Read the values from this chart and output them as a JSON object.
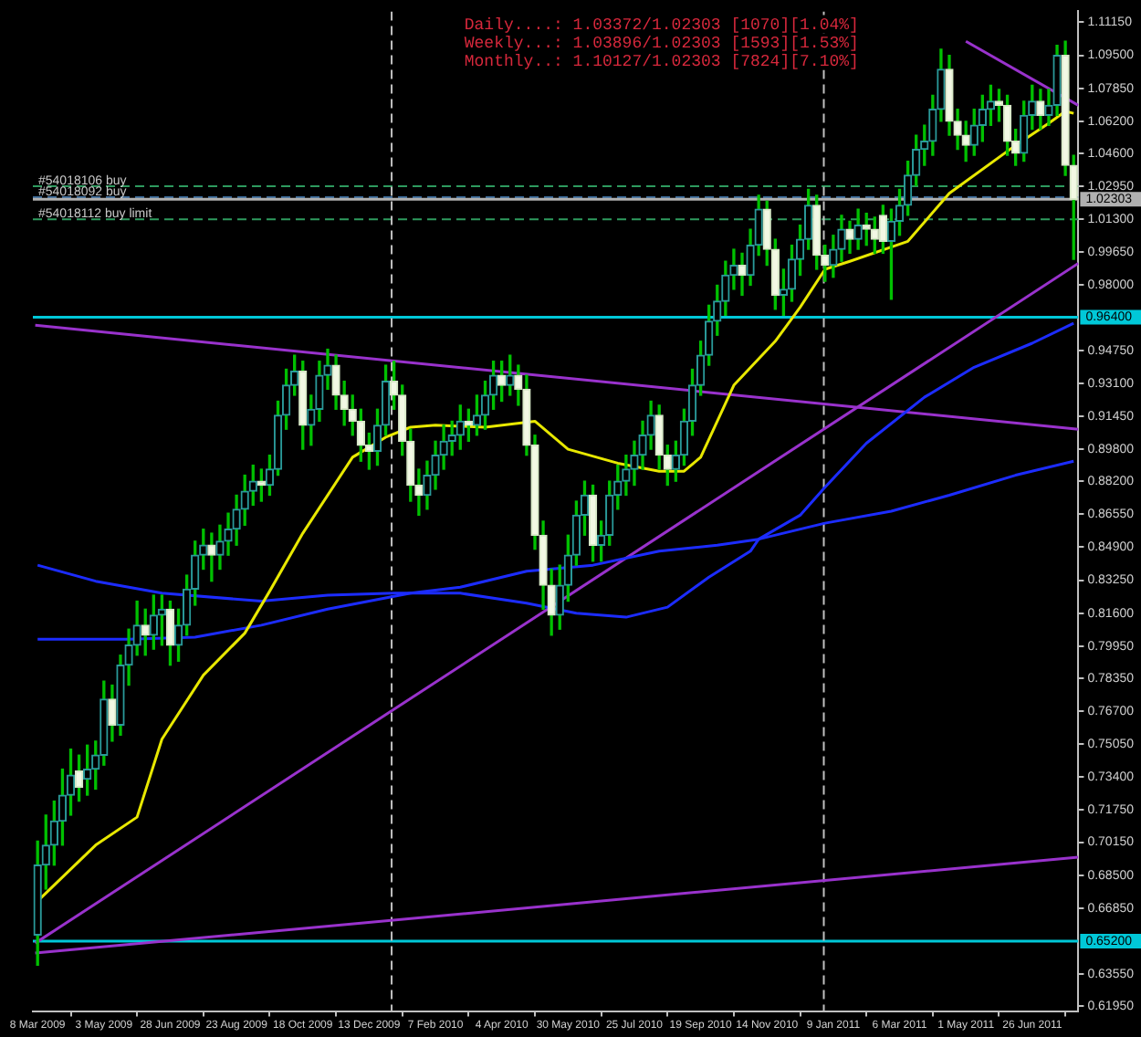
{
  "chart_data": {
    "type": "candlestick",
    "x": [
      "2009-03-08",
      "2009-03-15",
      "2009-03-22",
      "2009-03-29",
      "2009-04-05",
      "2009-04-12",
      "2009-04-19",
      "2009-04-26",
      "2009-05-03",
      "2009-05-10",
      "2009-05-17",
      "2009-05-24",
      "2009-05-31",
      "2009-06-07",
      "2009-06-14",
      "2009-06-21",
      "2009-06-28",
      "2009-07-05",
      "2009-07-12",
      "2009-07-19",
      "2009-07-26",
      "2009-08-02",
      "2009-08-09",
      "2009-08-16",
      "2009-08-23",
      "2009-08-30",
      "2009-09-06",
      "2009-09-13",
      "2009-09-20",
      "2009-09-27",
      "2009-10-04",
      "2009-10-11",
      "2009-10-18",
      "2009-10-25",
      "2009-11-01",
      "2009-11-08",
      "2009-11-15",
      "2009-11-22",
      "2009-11-29",
      "2009-12-06",
      "2009-12-13",
      "2009-12-20",
      "2009-12-27",
      "2010-01-03",
      "2010-01-10",
      "2010-01-17",
      "2010-01-24",
      "2010-01-31",
      "2010-02-07",
      "2010-02-14",
      "2010-02-21",
      "2010-02-28",
      "2010-03-07",
      "2010-03-14",
      "2010-03-21",
      "2010-03-28",
      "2010-04-04",
      "2010-04-11",
      "2010-04-18",
      "2010-04-25",
      "2010-05-02",
      "2010-05-09",
      "2010-05-16",
      "2010-05-23",
      "2010-05-30",
      "2010-06-06",
      "2010-06-13",
      "2010-06-20",
      "2010-06-27",
      "2010-07-04",
      "2010-07-11",
      "2010-07-18",
      "2010-07-25",
      "2010-08-01",
      "2010-08-08",
      "2010-08-15",
      "2010-08-22",
      "2010-08-29",
      "2010-09-05",
      "2010-09-12",
      "2010-09-19",
      "2010-09-26",
      "2010-10-03",
      "2010-10-10",
      "2010-10-17",
      "2010-10-24",
      "2010-10-31",
      "2010-11-07",
      "2010-11-14",
      "2010-11-21",
      "2010-11-28",
      "2010-12-05",
      "2010-12-12",
      "2010-12-19",
      "2010-12-26",
      "2011-01-02",
      "2011-01-09",
      "2011-01-16",
      "2011-01-23",
      "2011-01-30",
      "2011-02-06",
      "2011-02-13",
      "2011-02-20",
      "2011-02-27",
      "2011-03-06",
      "2011-03-13",
      "2011-03-20",
      "2011-03-27",
      "2011-04-03",
      "2011-04-10",
      "2011-04-17",
      "2011-04-24",
      "2011-05-01",
      "2011-05-08",
      "2011-05-15",
      "2011-05-22",
      "2011-05-29",
      "2011-06-05",
      "2011-06-12",
      "2011-06-19",
      "2011-06-26",
      "2011-07-03",
      "2011-07-10",
      "2011-07-17",
      "2011-07-24",
      "2011-07-31"
    ],
    "ohlc": [
      [
        0.655,
        0.702,
        0.64,
        0.69
      ],
      [
        0.69,
        0.715,
        0.678,
        0.7
      ],
      [
        0.7,
        0.722,
        0.69,
        0.712
      ],
      [
        0.712,
        0.738,
        0.7,
        0.725
      ],
      [
        0.725,
        0.748,
        0.715,
        0.735
      ],
      [
        0.737,
        0.745,
        0.722,
        0.729
      ],
      [
        0.733,
        0.75,
        0.725,
        0.738
      ],
      [
        0.738,
        0.752,
        0.728,
        0.745
      ],
      [
        0.745,
        0.782,
        0.74,
        0.773
      ],
      [
        0.773,
        0.78,
        0.752,
        0.76
      ],
      [
        0.76,
        0.795,
        0.755,
        0.79
      ],
      [
        0.79,
        0.808,
        0.78,
        0.8
      ],
      [
        0.8,
        0.822,
        0.795,
        0.81
      ],
      [
        0.81,
        0.818,
        0.795,
        0.805
      ],
      [
        0.805,
        0.825,
        0.798,
        0.815
      ],
      [
        0.815,
        0.825,
        0.8,
        0.818
      ],
      [
        0.818,
        0.822,
        0.79,
        0.8
      ],
      [
        0.8,
        0.818,
        0.792,
        0.81
      ],
      [
        0.81,
        0.835,
        0.805,
        0.828
      ],
      [
        0.828,
        0.852,
        0.82,
        0.845
      ],
      [
        0.845,
        0.858,
        0.838,
        0.85
      ],
      [
        0.85,
        0.856,
        0.832,
        0.845
      ],
      [
        0.845,
        0.86,
        0.838,
        0.852
      ],
      [
        0.852,
        0.866,
        0.845,
        0.858
      ],
      [
        0.858,
        0.875,
        0.85,
        0.868
      ],
      [
        0.868,
        0.885,
        0.86,
        0.877
      ],
      [
        0.877,
        0.89,
        0.87,
        0.882
      ],
      [
        0.882,
        0.888,
        0.872,
        0.88
      ],
      [
        0.88,
        0.895,
        0.875,
        0.888
      ],
      [
        0.888,
        0.922,
        0.885,
        0.915
      ],
      [
        0.915,
        0.938,
        0.908,
        0.93
      ],
      [
        0.93,
        0.945,
        0.925,
        0.937
      ],
      [
        0.937,
        0.942,
        0.898,
        0.91
      ],
      [
        0.91,
        0.925,
        0.9,
        0.918
      ],
      [
        0.918,
        0.942,
        0.912,
        0.935
      ],
      [
        0.935,
        0.948,
        0.928,
        0.94
      ],
      [
        0.94,
        0.945,
        0.918,
        0.925
      ],
      [
        0.925,
        0.932,
        0.91,
        0.918
      ],
      [
        0.918,
        0.925,
        0.905,
        0.912
      ],
      [
        0.912,
        0.918,
        0.892,
        0.9
      ],
      [
        0.9,
        0.906,
        0.888,
        0.897
      ],
      [
        0.897,
        0.918,
        0.89,
        0.91
      ],
      [
        0.91,
        0.94,
        0.905,
        0.932
      ],
      [
        0.932,
        0.942,
        0.918,
        0.925
      ],
      [
        0.925,
        0.93,
        0.895,
        0.902
      ],
      [
        0.902,
        0.908,
        0.872,
        0.88
      ],
      [
        0.88,
        0.888,
        0.865,
        0.875
      ],
      [
        0.875,
        0.892,
        0.868,
        0.885
      ],
      [
        0.885,
        0.902,
        0.878,
        0.895
      ],
      [
        0.895,
        0.91,
        0.888,
        0.902
      ],
      [
        0.902,
        0.912,
        0.895,
        0.905
      ],
      [
        0.905,
        0.92,
        0.898,
        0.912
      ],
      [
        0.912,
        0.918,
        0.902,
        0.91
      ],
      [
        0.91,
        0.925,
        0.905,
        0.915
      ],
      [
        0.915,
        0.932,
        0.908,
        0.925
      ],
      [
        0.925,
        0.942,
        0.918,
        0.935
      ],
      [
        0.935,
        0.942,
        0.922,
        0.93
      ],
      [
        0.93,
        0.945,
        0.925,
        0.935
      ],
      [
        0.935,
        0.94,
        0.92,
        0.928
      ],
      [
        0.928,
        0.935,
        0.895,
        0.9
      ],
      [
        0.9,
        0.905,
        0.848,
        0.855
      ],
      [
        0.855,
        0.862,
        0.818,
        0.83
      ],
      [
        0.83,
        0.838,
        0.805,
        0.815
      ],
      [
        0.815,
        0.84,
        0.808,
        0.83
      ],
      [
        0.83,
        0.855,
        0.822,
        0.845
      ],
      [
        0.845,
        0.872,
        0.84,
        0.865
      ],
      [
        0.865,
        0.882,
        0.855,
        0.875
      ],
      [
        0.875,
        0.88,
        0.842,
        0.85
      ],
      [
        0.85,
        0.862,
        0.842,
        0.855
      ],
      [
        0.855,
        0.882,
        0.85,
        0.875
      ],
      [
        0.875,
        0.89,
        0.868,
        0.882
      ],
      [
        0.882,
        0.895,
        0.875,
        0.888
      ],
      [
        0.888,
        0.902,
        0.88,
        0.895
      ],
      [
        0.895,
        0.912,
        0.888,
        0.905
      ],
      [
        0.905,
        0.922,
        0.898,
        0.915
      ],
      [
        0.915,
        0.92,
        0.888,
        0.895
      ],
      [
        0.895,
        0.9,
        0.88,
        0.888
      ],
      [
        0.888,
        0.902,
        0.882,
        0.895
      ],
      [
        0.895,
        0.918,
        0.89,
        0.912
      ],
      [
        0.912,
        0.938,
        0.905,
        0.93
      ],
      [
        0.93,
        0.952,
        0.925,
        0.945
      ],
      [
        0.945,
        0.97,
        0.94,
        0.962
      ],
      [
        0.962,
        0.98,
        0.955,
        0.972
      ],
      [
        0.972,
        0.992,
        0.965,
        0.985
      ],
      [
        0.985,
        0.998,
        0.978,
        0.99
      ],
      [
        0.99,
        0.996,
        0.975,
        0.985
      ],
      [
        0.985,
        1.008,
        0.98,
        1.0
      ],
      [
        1.0,
        1.025,
        0.995,
        1.018
      ],
      [
        1.018,
        1.022,
        0.99,
        0.998
      ],
      [
        0.998,
        1.003,
        0.968,
        0.975
      ],
      [
        0.975,
        0.988,
        0.965,
        0.978
      ],
      [
        0.978,
        1.0,
        0.972,
        0.993
      ],
      [
        0.993,
        1.01,
        0.985,
        1.003
      ],
      [
        1.003,
        1.028,
        0.998,
        1.02
      ],
      [
        1.02,
        1.025,
        0.988,
        0.995
      ],
      [
        0.995,
        1.0,
        0.982,
        0.99
      ],
      [
        0.99,
        1.005,
        0.984,
        0.998
      ],
      [
        0.998,
        1.015,
        0.992,
        1.008
      ],
      [
        1.008,
        1.012,
        0.996,
        1.003
      ],
      [
        1.003,
        1.018,
        0.998,
        1.01
      ],
      [
        1.01,
        1.016,
        1.0,
        1.008
      ],
      [
        1.008,
        1.014,
        0.996,
        1.003
      ],
      [
        1.015,
        1.02,
        0.996,
        1.002
      ],
      [
        1.002,
        1.018,
        0.973,
        1.012
      ],
      [
        1.012,
        1.028,
        1.005,
        1.02
      ],
      [
        1.02,
        1.042,
        1.015,
        1.035
      ],
      [
        1.035,
        1.055,
        1.03,
        1.048
      ],
      [
        1.048,
        1.06,
        1.04,
        1.052
      ],
      [
        1.052,
        1.075,
        1.045,
        1.068
      ],
      [
        1.068,
        1.098,
        1.062,
        1.088
      ],
      [
        1.088,
        1.095,
        1.055,
        1.062
      ],
      [
        1.062,
        1.068,
        1.048,
        1.055
      ],
      [
        1.055,
        1.062,
        1.042,
        1.05
      ],
      [
        1.05,
        1.068,
        1.045,
        1.06
      ],
      [
        1.06,
        1.075,
        1.052,
        1.068
      ],
      [
        1.068,
        1.08,
        1.06,
        1.072
      ],
      [
        1.072,
        1.078,
        1.062,
        1.07
      ],
      [
        1.07,
        1.075,
        1.045,
        1.052
      ],
      [
        1.052,
        1.058,
        1.04,
        1.046
      ],
      [
        1.046,
        1.072,
        1.042,
        1.065
      ],
      [
        1.065,
        1.08,
        1.058,
        1.072
      ],
      [
        1.072,
        1.078,
        1.058,
        1.065
      ],
      [
        1.065,
        1.078,
        1.06,
        1.07
      ],
      [
        1.07,
        1.1,
        1.065,
        1.095
      ],
      [
        1.095,
        1.102,
        1.035,
        1.04
      ],
      [
        1.04,
        1.045,
        0.993,
        1.023
      ]
    ],
    "series": [
      {
        "type": "line",
        "color": "#e8e800",
        "x": [
          "2009-03-08",
          "2009-04-26",
          "2009-05-31",
          "2009-06-21",
          "2009-07-26",
          "2009-08-30",
          "2009-09-20",
          "2009-10-18",
          "2009-11-29",
          "2009-12-27",
          "2010-01-17",
          "2010-02-07",
          "2010-03-21",
          "2010-05-02",
          "2010-05-30",
          "2010-07-11",
          "2010-08-15",
          "2010-09-05",
          "2010-09-19",
          "2010-10-17",
          "2010-11-21",
          "2010-12-12",
          "2011-01-02",
          "2011-01-23",
          "2011-03-13",
          "2011-04-17",
          "2011-06-12",
          "2011-07-10",
          "2011-07-24",
          "2011-07-31"
        ],
        "values": [
          0.672,
          0.7,
          0.714,
          0.753,
          0.785,
          0.806,
          0.827,
          0.856,
          0.894,
          0.904,
          0.909,
          0.91,
          0.909,
          0.912,
          0.898,
          0.891,
          0.887,
          0.887,
          0.894,
          0.93,
          0.952,
          0.969,
          0.988,
          0.992,
          1.002,
          1.026,
          1.05,
          1.061,
          1.067,
          1.066
        ]
      },
      {
        "type": "line",
        "color": "#1c2cff",
        "x": [
          "2009-03-08",
          "2009-04-26",
          "2009-06-21",
          "2009-09-13",
          "2009-11-08",
          "2010-01-03",
          "2010-02-28",
          "2010-04-25",
          "2010-06-06",
          "2010-07-18",
          "2010-08-22",
          "2010-09-26",
          "2010-10-31",
          "2010-11-07",
          "2010-12-12",
          "2011-01-02",
          "2011-02-06",
          "2011-03-27",
          "2011-05-08",
          "2011-06-26",
          "2011-07-31"
        ],
        "values": [
          0.84,
          0.832,
          0.826,
          0.822,
          0.825,
          0.826,
          0.826,
          0.821,
          0.816,
          0.814,
          0.819,
          0.834,
          0.847,
          0.853,
          0.865,
          0.879,
          0.901,
          0.924,
          0.939,
          0.951,
          0.961
        ]
      },
      {
        "type": "line",
        "color": "#1c2cff",
        "x": [
          "2009-03-08",
          "2009-05-24",
          "2009-07-19",
          "2009-09-13",
          "2009-11-08",
          "2010-01-17",
          "2010-02-28",
          "2010-04-25",
          "2010-06-20",
          "2010-08-15",
          "2010-10-03",
          "2010-11-07",
          "2011-01-02",
          "2011-02-27",
          "2011-04-17",
          "2011-06-12",
          "2011-07-31"
        ],
        "values": [
          0.803,
          0.803,
          0.804,
          0.81,
          0.818,
          0.826,
          0.829,
          0.837,
          0.84,
          0.847,
          0.85,
          0.853,
          0.861,
          0.867,
          0.875,
          0.885,
          0.892
        ]
      },
      {
        "type": "line",
        "color": "#9932cc",
        "x": [
          "2009-03-06",
          "2011-08-04"
        ],
        "values": [
          0.96,
          0.908
        ]
      },
      {
        "type": "line",
        "color": "#9932cc",
        "x": [
          "2009-03-06",
          "2011-08-04"
        ],
        "values": [
          0.651,
          0.991
        ]
      },
      {
        "type": "line",
        "color": "#9932cc",
        "x": [
          "2009-03-06",
          "2011-08-04"
        ],
        "values": [
          0.646,
          0.694
        ]
      },
      {
        "type": "line",
        "color": "#9932cc",
        "x": [
          "2011-05-01",
          "2011-08-04"
        ],
        "values": [
          1.102,
          1.07
        ]
      }
    ],
    "xlim": [
      "2009-03-04",
      "2011-08-04"
    ],
    "xticks": [
      {
        "value": "2009-03-08",
        "label": "8 Mar 2009"
      },
      {
        "value": "2009-05-03",
        "label": "3 May 2009"
      },
      {
        "value": "2009-06-28",
        "label": "28 Jun 2009"
      },
      {
        "value": "2009-08-23",
        "label": "23 Aug 2009"
      },
      {
        "value": "2009-10-18",
        "label": "18 Oct 2009"
      },
      {
        "value": "2009-12-13",
        "label": "13 Dec 2009"
      },
      {
        "value": "2010-02-07",
        "label": "7 Feb 2010"
      },
      {
        "value": "2010-04-04",
        "label": "4 Apr 2010"
      },
      {
        "value": "2010-05-30",
        "label": "30 May 2010"
      },
      {
        "value": "2010-07-25",
        "label": "25 Jul 2010"
      },
      {
        "value": "2010-09-19",
        "label": "19 Sep 2010"
      },
      {
        "value": "2010-11-14",
        "label": "14 Nov 2010"
      },
      {
        "value": "2011-01-09",
        "label": "9 Jan 2011"
      },
      {
        "value": "2011-03-06",
        "label": "6 Mar 2011"
      },
      {
        "value": "2011-05-01",
        "label": "1 May 2011"
      },
      {
        "value": "2011-06-26",
        "label": "26 Jun 2011"
      }
    ],
    "ylim": [
      0.617,
      1.117
    ],
    "yticks": [
      {
        "value": 1.1115,
        "label": "1.11150"
      },
      {
        "value": 1.095,
        "label": "1.09500"
      },
      {
        "value": 1.0785,
        "label": "1.07850"
      },
      {
        "value": 1.062,
        "label": "1.06200"
      },
      {
        "value": 1.046,
        "label": "1.04600"
      },
      {
        "value": 1.0295,
        "label": "1.02950"
      },
      {
        "value": 1.013,
        "label": "1.01300"
      },
      {
        "value": 0.9965,
        "label": "0.99650"
      },
      {
        "value": 0.98,
        "label": "0.98000"
      },
      {
        "value": 0.9475,
        "label": "0.94750"
      },
      {
        "value": 0.931,
        "label": "0.93100"
      },
      {
        "value": 0.9145,
        "label": "0.91450"
      },
      {
        "value": 0.898,
        "label": "0.89800"
      },
      {
        "value": 0.882,
        "label": "0.88200"
      },
      {
        "value": 0.8655,
        "label": "0.86550"
      },
      {
        "value": 0.849,
        "label": "0.84900"
      },
      {
        "value": 0.8325,
        "label": "0.83250"
      },
      {
        "value": 0.816,
        "label": "0.81600"
      },
      {
        "value": 0.7995,
        "label": "0.79950"
      },
      {
        "value": 0.7835,
        "label": "0.78350"
      },
      {
        "value": 0.767,
        "label": "0.76700"
      },
      {
        "value": 0.7505,
        "label": "0.75050"
      },
      {
        "value": 0.734,
        "label": "0.73400"
      },
      {
        "value": 0.7175,
        "label": "0.71750"
      },
      {
        "value": 0.7015,
        "label": "0.70150"
      },
      {
        "value": 0.685,
        "label": "0.68500"
      },
      {
        "value": 0.6685,
        "label": "0.66850"
      },
      {
        "value": 0.6355,
        "label": "0.63550"
      },
      {
        "value": 0.6195,
        "label": "0.61950"
      }
    ],
    "ref_lines": [
      {
        "axis": "y",
        "value": 1.0295,
        "label": "#54018106 buy",
        "color": "#2e9a5e",
        "line_style": "dashed"
      },
      {
        "axis": "y",
        "value": 1.024,
        "label": "#54018092 buy",
        "color": "#3a6a9a",
        "line_style": "dashed"
      },
      {
        "axis": "y",
        "value": 1.013,
        "label": "#54018112 buy limit",
        "color": "#2e9a5e",
        "line_style": "dashed"
      },
      {
        "axis": "y",
        "value": 1.02303,
        "label": "1.02303",
        "color": "#b0b0b0"
      },
      {
        "axis": "y",
        "value": 0.964,
        "label": "0.96400",
        "color": "#00c8d8"
      },
      {
        "axis": "y",
        "value": 0.652,
        "label": "0.65200",
        "color": "#00c8d8"
      },
      {
        "axis": "x",
        "value": "2010-01-01",
        "color": "#c0c0c0",
        "line_style": "dashed"
      },
      {
        "axis": "x",
        "value": "2011-01-01",
        "color": "#c0c0c0",
        "line_style": "dashed"
      }
    ],
    "annotations": [
      "Daily....: 1.03372/1.02303 [1070][1.04%]",
      "Weekly...: 1.03896/1.02303 [1593][1.53%]",
      "Monthly..: 1.10127/1.02303 [7824][7.10%]"
    ]
  }
}
